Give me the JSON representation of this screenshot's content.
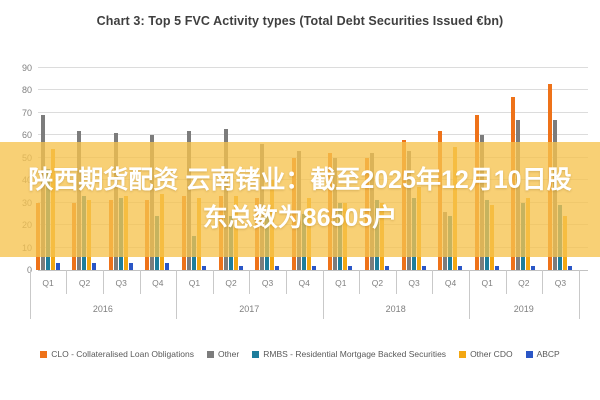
{
  "title": "Chart 3: Top 5 FVC Activity types (Total Debt Securities Issued €bn)",
  "overlay": {
    "line1": "陕西期货配资 云南锗业：截至2025年12月10日股",
    "line2": "东总数为86505户",
    "background_color": "#F6C34E",
    "text_color": "#FFFFFF"
  },
  "chart_data": {
    "type": "bar",
    "title": "Chart 3: Top 5 FVC Activity types (Total Debt Securities Issued €bn)",
    "xlabel": "",
    "ylabel": "",
    "ylim": [
      0,
      90
    ],
    "yticks": [
      0,
      10,
      20,
      30,
      40,
      50,
      60,
      70,
      80,
      90
    ],
    "grid": true,
    "legend_position": "bottom",
    "categories": [
      "Q1",
      "Q2",
      "Q3",
      "Q4",
      "Q1",
      "Q2",
      "Q3",
      "Q4",
      "Q1",
      "Q2",
      "Q3",
      "Q4",
      "Q1",
      "Q2",
      "Q3"
    ],
    "year_groups": [
      {
        "label": "2016",
        "quarters": 4
      },
      {
        "label": "2017",
        "quarters": 4
      },
      {
        "label": "2018",
        "quarters": 4
      },
      {
        "label": "2019",
        "quarters": 3
      }
    ],
    "series": [
      {
        "name": "CLO - Collateralised Loan Obligations",
        "color": "#EE7219",
        "values": [
          30,
          30,
          31,
          31,
          33,
          33,
          32,
          50,
          52,
          50,
          58,
          62,
          69,
          77,
          83
        ]
      },
      {
        "name": "Other",
        "color": "#7C7C7C",
        "values": [
          69,
          62,
          61,
          60,
          62,
          63,
          56,
          53,
          50,
          52,
          53,
          26,
          60,
          67,
          67
        ]
      },
      {
        "name": "RMBS - Residential Mortgage Backed Securities",
        "color": "#1D7D9C",
        "values": [
          45,
          33,
          32,
          24,
          15,
          24,
          25,
          25,
          30,
          31,
          32,
          24,
          31,
          30,
          29
        ]
      },
      {
        "name": "Other CDO",
        "color": "#F3A712",
        "values": [
          54,
          31,
          33,
          34,
          32,
          33,
          40,
          32,
          30,
          30,
          37,
          55,
          29,
          32,
          24
        ]
      },
      {
        "name": "ABCP",
        "color": "#2A56C6",
        "values": [
          3,
          3,
          3,
          3,
          2,
          2,
          2,
          2,
          2,
          2,
          2,
          2,
          2,
          2,
          2
        ]
      }
    ]
  }
}
